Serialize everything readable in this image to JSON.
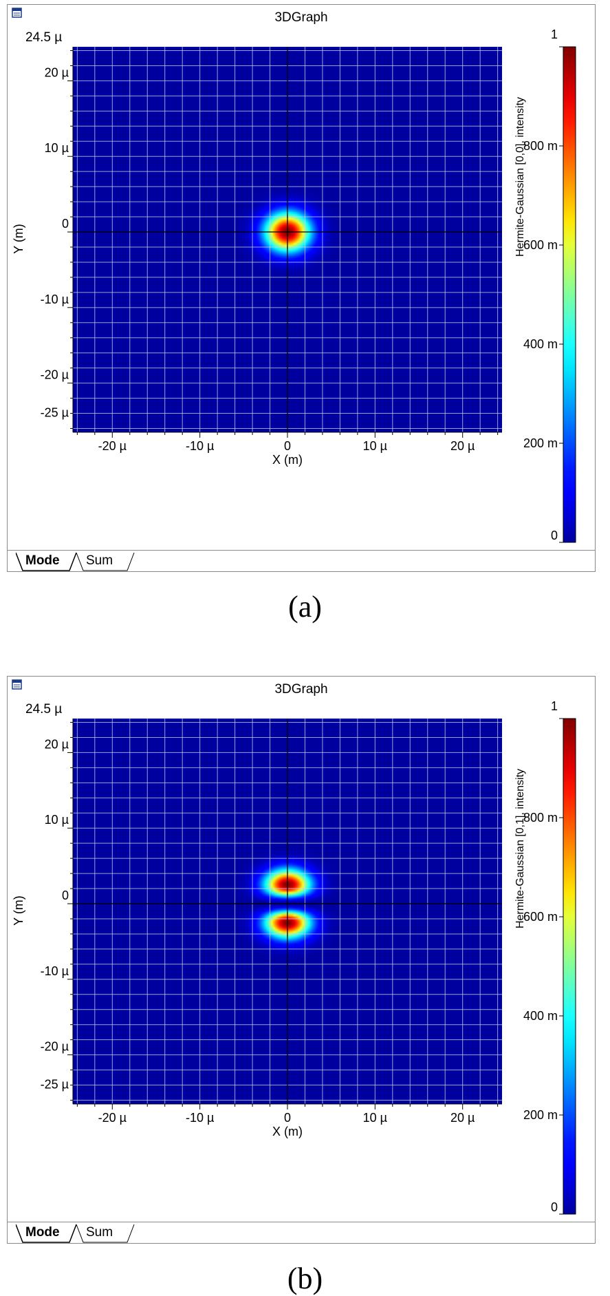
{
  "panels": [
    {
      "window_title": "3DGraph",
      "corner_label": "24.5 µ",
      "tabs": [
        {
          "label": "Mode",
          "active": true
        },
        {
          "label": "Sum",
          "active": false
        }
      ],
      "caption": "(a)",
      "chart_data": {
        "type": "heatmap",
        "title": "",
        "xlabel": "X (m)",
        "ylabel": "Y (m)",
        "colorbar_label": "Hermite-Gaussian [0,0], intensity",
        "xlim": [
          -2.45e-05,
          2.45e-05
        ],
        "ylim": [
          -2.65e-05,
          2.45e-05
        ],
        "x_ticks": [
          {
            "value": -20,
            "label": "-20 µ"
          },
          {
            "value": -10,
            "label": "-10 µ"
          },
          {
            "value": 0,
            "label": "0"
          },
          {
            "value": 10,
            "label": "10 µ"
          },
          {
            "value": 20,
            "label": "20 µ"
          }
        ],
        "y_ticks": [
          {
            "value": 20,
            "label": "20 µ"
          },
          {
            "value": 10,
            "label": "10 µ"
          },
          {
            "value": 0,
            "label": "0"
          },
          {
            "value": -10,
            "label": "-10 µ"
          },
          {
            "value": -20,
            "label": "-20 µ"
          },
          {
            "value": -25,
            "label": "-25 µ"
          }
        ],
        "colorbar_ticks": [
          {
            "value": 1,
            "label": "1"
          },
          {
            "value": 0.8,
            "label": "800 m"
          },
          {
            "value": 0.6,
            "label": "600 m"
          },
          {
            "value": 0.4,
            "label": "400 m"
          },
          {
            "value": 0.2,
            "label": "200 m"
          },
          {
            "value": 0,
            "label": "0"
          }
        ],
        "mode": {
          "m": 0,
          "n": 0,
          "waist_um": 3.6
        },
        "zlim": [
          0,
          1
        ],
        "colormap": "jet",
        "grid": true,
        "crosshair": true
      }
    },
    {
      "window_title": "3DGraph",
      "corner_label": "24.5 µ",
      "tabs": [
        {
          "label": "Mode",
          "active": true
        },
        {
          "label": "Sum",
          "active": false
        }
      ],
      "caption": "(b)",
      "chart_data": {
        "type": "heatmap",
        "title": "",
        "xlabel": "X (m)",
        "ylabel": "Y (m)",
        "colorbar_label": "Hermite-Gaussian [0,1], intensity",
        "xlim": [
          -2.45e-05,
          2.45e-05
        ],
        "ylim": [
          -2.65e-05,
          2.45e-05
        ],
        "x_ticks": [
          {
            "value": -20,
            "label": "-20 µ"
          },
          {
            "value": -10,
            "label": "-10 µ"
          },
          {
            "value": 0,
            "label": "0"
          },
          {
            "value": 10,
            "label": "10 µ"
          },
          {
            "value": 20,
            "label": "20 µ"
          }
        ],
        "y_ticks": [
          {
            "value": 20,
            "label": "20 µ"
          },
          {
            "value": 10,
            "label": "10 µ"
          },
          {
            "value": 0,
            "label": "0"
          },
          {
            "value": -10,
            "label": "-10 µ"
          },
          {
            "value": -20,
            "label": "-20 µ"
          },
          {
            "value": -25,
            "label": "-25 µ"
          }
        ],
        "colorbar_ticks": [
          {
            "value": 1,
            "label": "1"
          },
          {
            "value": 0.8,
            "label": "800 m"
          },
          {
            "value": 0.6,
            "label": "600 m"
          },
          {
            "value": 0.4,
            "label": "400 m"
          },
          {
            "value": 0.2,
            "label": "200 m"
          },
          {
            "value": 0,
            "label": "0"
          }
        ],
        "mode": {
          "m": 0,
          "n": 1,
          "waist_um": 3.6
        },
        "zlim": [
          0,
          1
        ],
        "colormap": "jet",
        "grid": true,
        "crosshair": true
      }
    }
  ]
}
